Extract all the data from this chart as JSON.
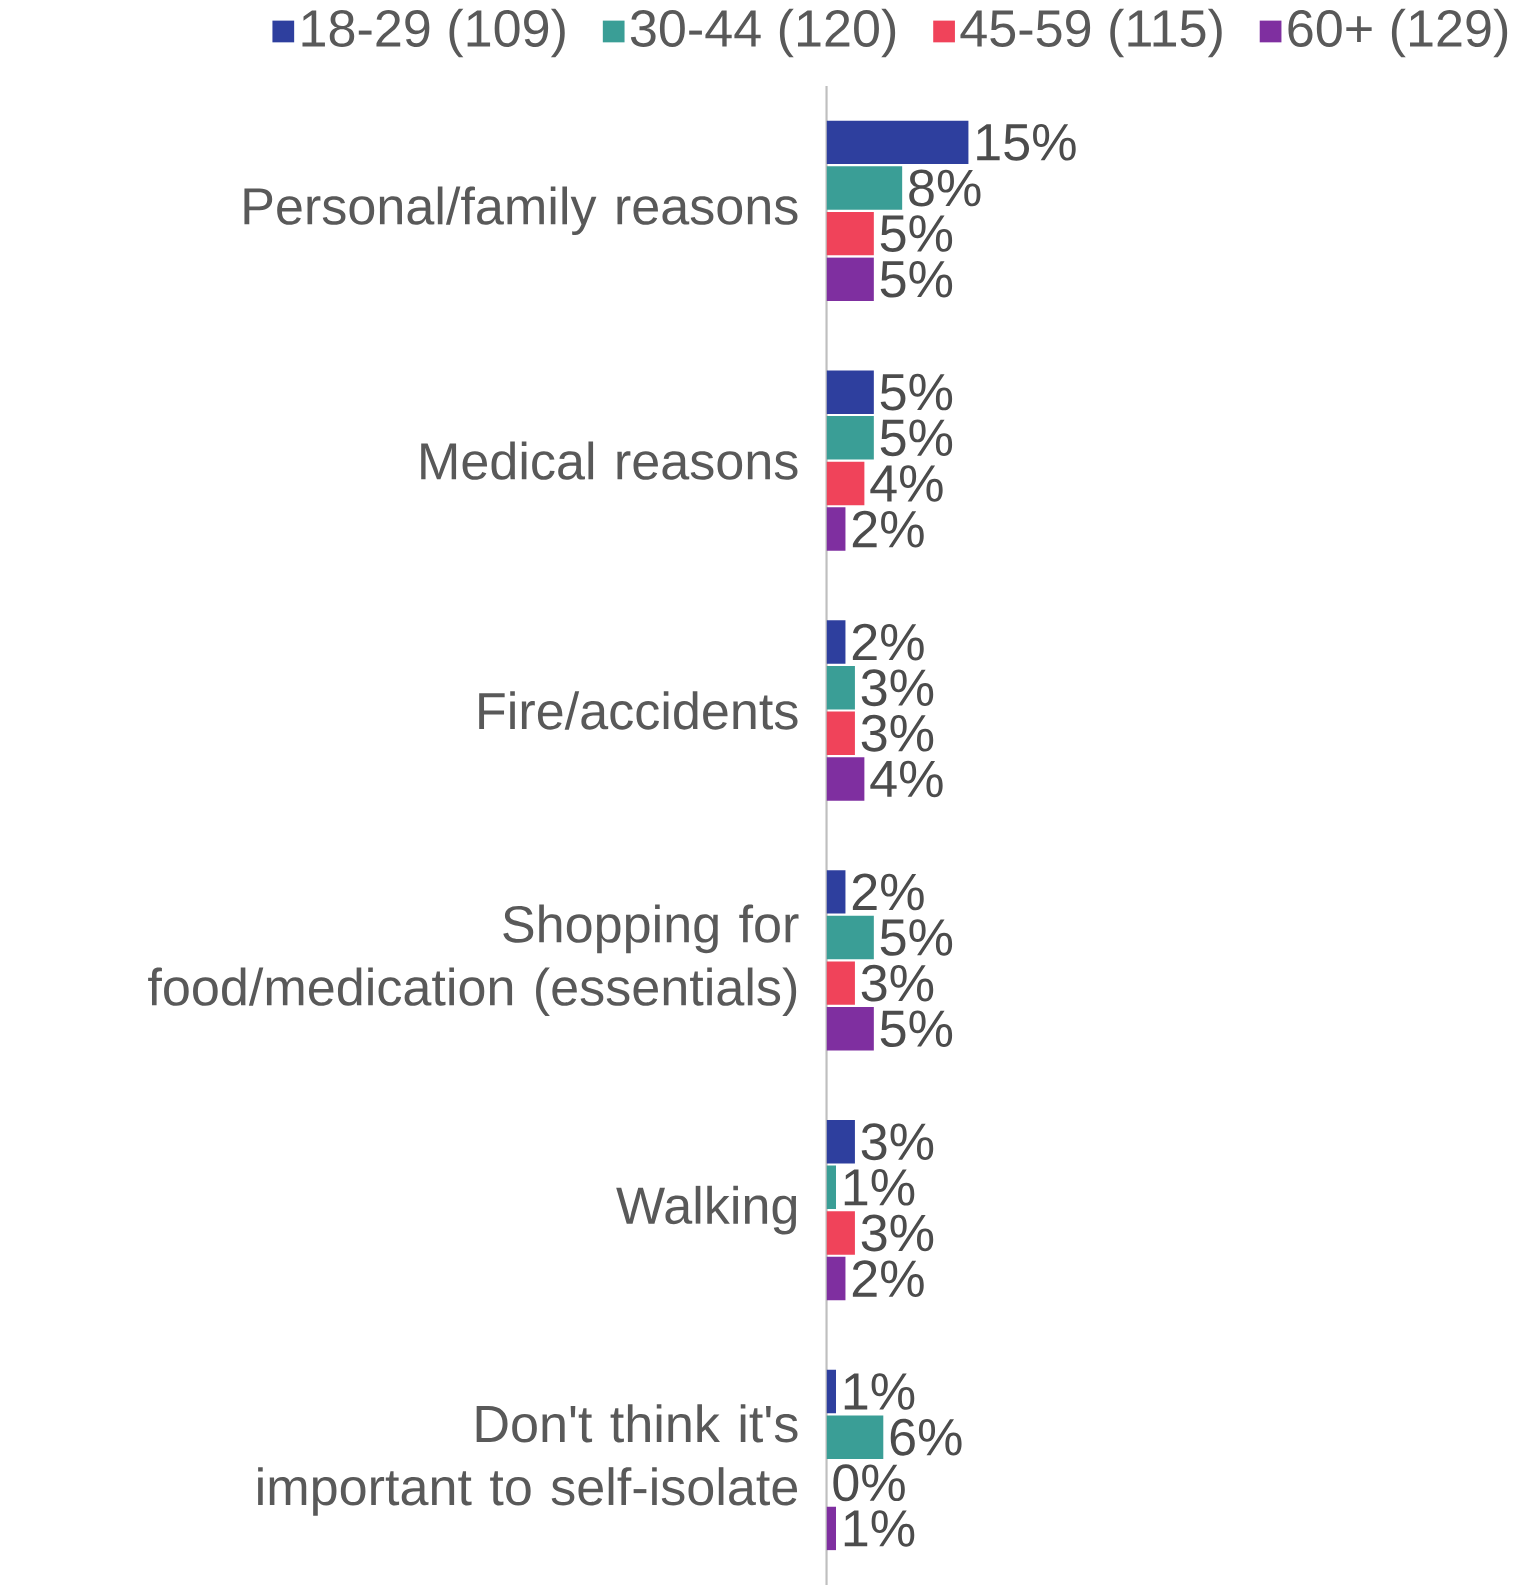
{
  "chart_data": {
    "type": "bar",
    "orientation": "horizontal",
    "legend": "top",
    "categories": [
      "Personal/family reasons",
      "Medical reasons",
      "Fire/accidents",
      "Shopping for food/medication (essentials)",
      "Walking",
      "Don't think it's important to self-isolate"
    ],
    "series": [
      {
        "name": "18-29 (109)",
        "color": "#2e3f9e",
        "values": [
          15,
          5,
          2,
          2,
          3,
          1
        ],
        "value_labels": [
          "15%",
          "5%",
          "2%",
          "2%",
          "3%",
          "1%"
        ]
      },
      {
        "name": "30-44 (120)",
        "color": "#3a9e96",
        "values": [
          8,
          5,
          3,
          5,
          1,
          6
        ],
        "value_labels": [
          "8%",
          "5%",
          "3%",
          "5%",
          "1%",
          "6%"
        ]
      },
      {
        "name": "45-59 (115)",
        "color": "#f0435a",
        "values": [
          5,
          4,
          3,
          3,
          3,
          0
        ],
        "value_labels": [
          "5%",
          "4%",
          "3%",
          "3%",
          "3%",
          "0%"
        ]
      },
      {
        "name": "60+ (129)",
        "color": "#7f2fa0",
        "values": [
          5,
          2,
          4,
          5,
          2,
          1
        ],
        "value_labels": [
          "5%",
          "2%",
          "4%",
          "5%",
          "2%",
          "1%"
        ]
      }
    ]
  }
}
